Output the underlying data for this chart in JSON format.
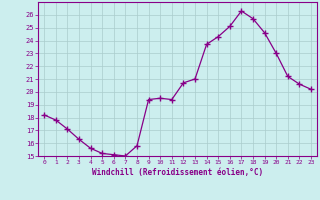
{
  "x": [
    0,
    1,
    2,
    3,
    4,
    5,
    6,
    7,
    8,
    9,
    10,
    11,
    12,
    13,
    14,
    15,
    16,
    17,
    18,
    19,
    20,
    21,
    22,
    23
  ],
  "y": [
    18.2,
    17.8,
    17.1,
    16.3,
    15.6,
    15.2,
    15.1,
    15.0,
    15.8,
    19.4,
    19.5,
    19.4,
    20.7,
    21.0,
    23.7,
    24.3,
    25.1,
    26.3,
    25.7,
    24.6,
    23.0,
    21.2,
    20.6,
    20.2
  ],
  "line_color": "#880088",
  "marker": "+",
  "marker_size": 4,
  "bg_color": "#cceeee",
  "grid_color": "#aacccc",
  "axis_color": "#880088",
  "xlabel": "Windchill (Refroidissement éolien,°C)",
  "xlabel_color": "#880088",
  "ylim": [
    15,
    27
  ],
  "xlim_min": -0.5,
  "xlim_max": 23.5,
  "yticks": [
    15,
    16,
    17,
    18,
    19,
    20,
    21,
    22,
    23,
    24,
    25,
    26
  ],
  "xticks": [
    0,
    1,
    2,
    3,
    4,
    5,
    6,
    7,
    8,
    9,
    10,
    11,
    12,
    13,
    14,
    15,
    16,
    17,
    18,
    19,
    20,
    21,
    22,
    23
  ]
}
